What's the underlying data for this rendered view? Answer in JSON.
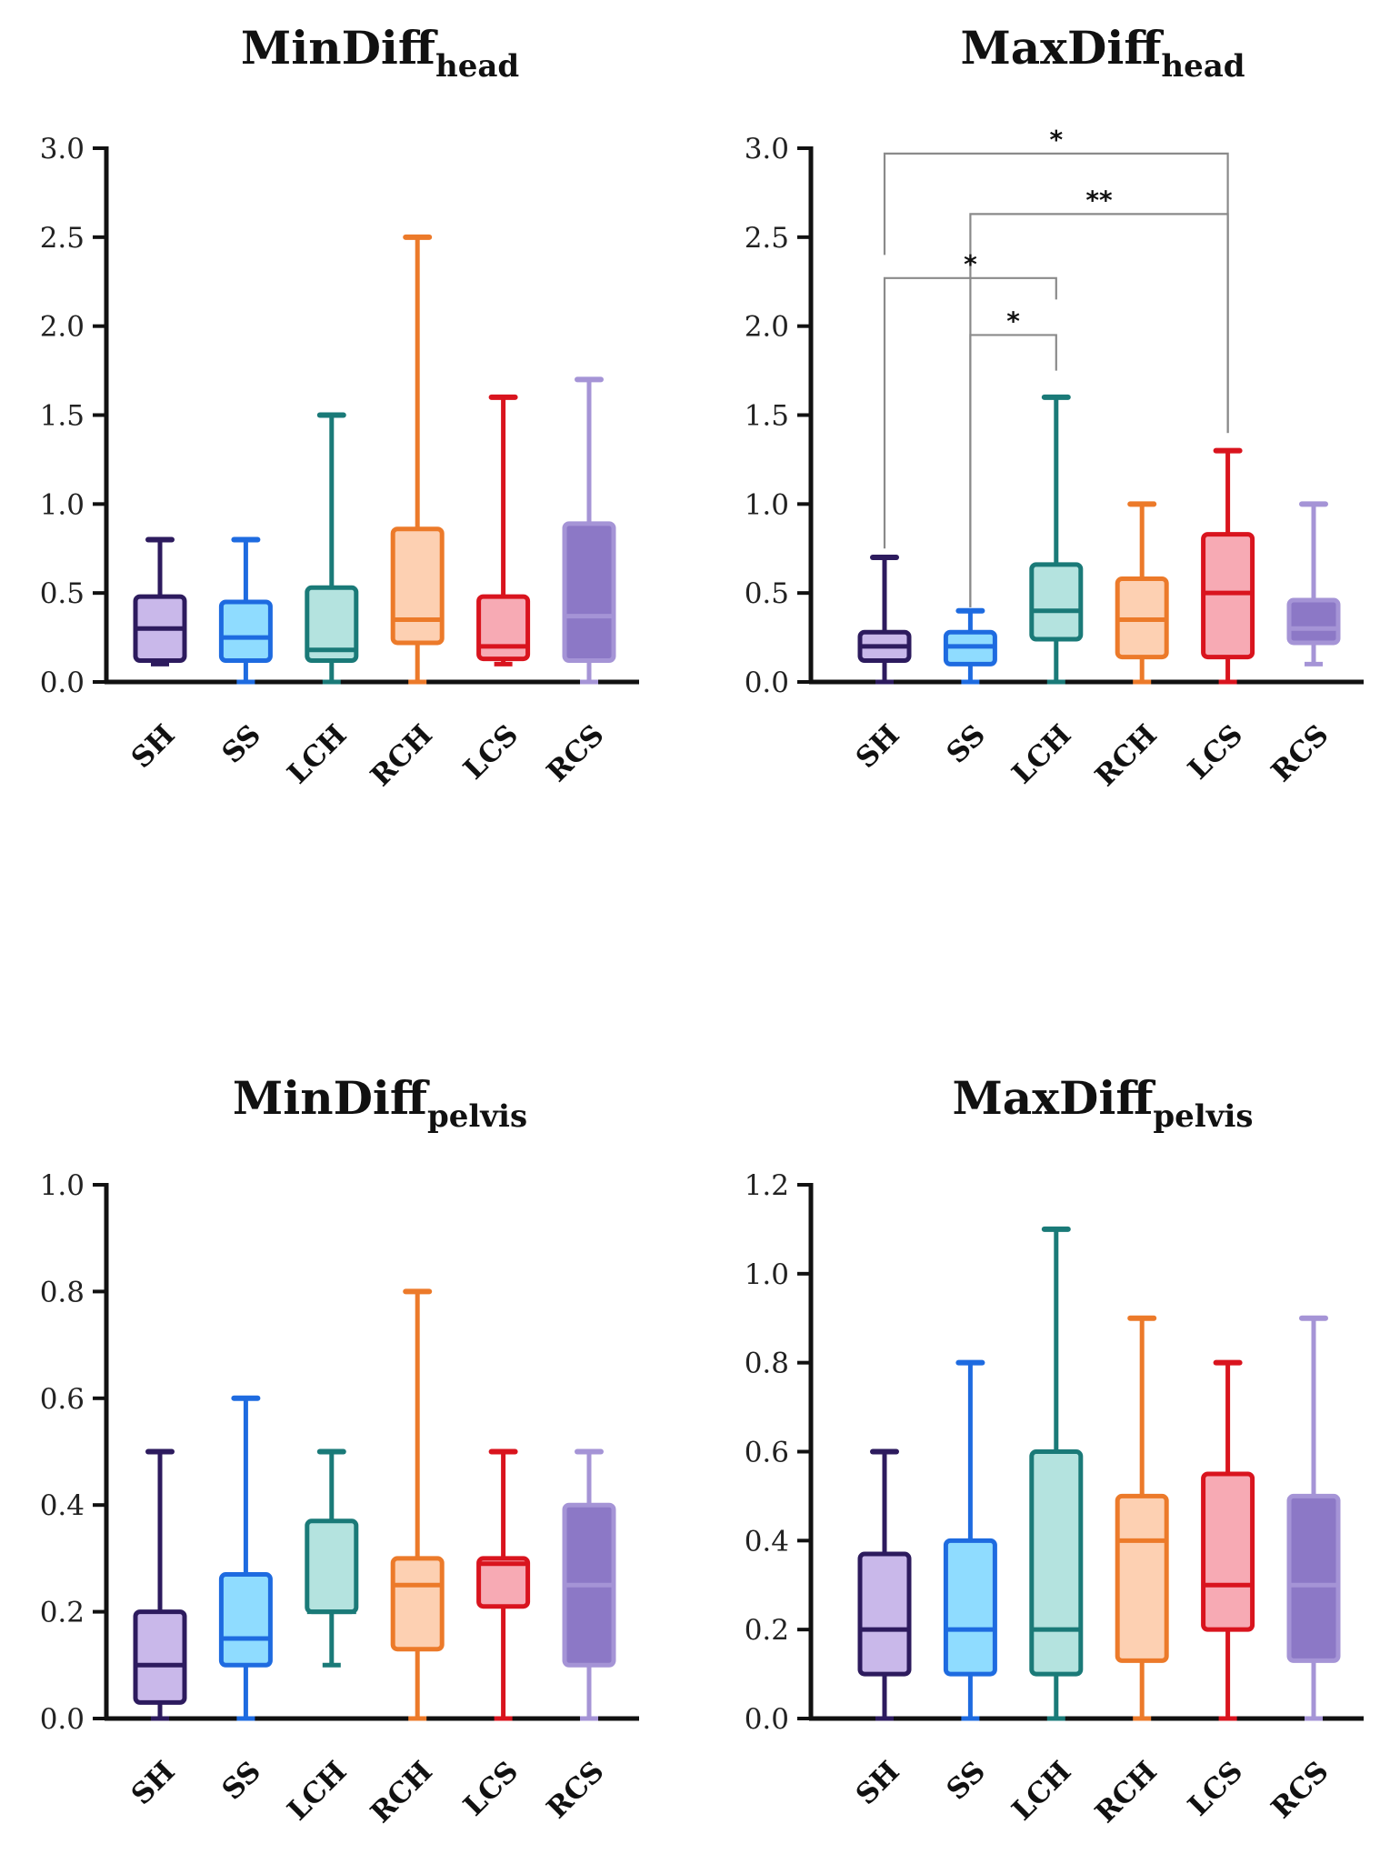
{
  "colors": {
    "SH": {
      "stroke": "#2d1b5e",
      "fill": "#c9b8ea"
    },
    "SS": {
      "stroke": "#1e6be0",
      "fill": "#8fdcff"
    },
    "LCH": {
      "stroke": "#1a7a78",
      "fill": "#b4e3df"
    },
    "RCH": {
      "stroke": "#ec7a2a",
      "fill": "#fdd0b2"
    },
    "LCS": {
      "stroke": "#d9141e",
      "fill": "#f7aab4"
    },
    "RCS": {
      "stroke": "#a594d6",
      "fill": "#8c78c6"
    }
  },
  "chart_data": [
    {
      "type": "box",
      "title": "MinDiff",
      "title_sub": "head",
      "categories": [
        "SH",
        "SS",
        "LCH",
        "RCH",
        "LCS",
        "RCS"
      ],
      "yticks": [
        "0.0",
        "0.5",
        "1.0",
        "1.5",
        "2.0",
        "2.5",
        "3.0"
      ],
      "ylim": [
        0,
        3.0
      ],
      "boxes": [
        {
          "min": 0.1,
          "q1": 0.12,
          "median": 0.3,
          "q3": 0.48,
          "max": 0.8
        },
        {
          "min": 0.0,
          "q1": 0.12,
          "median": 0.25,
          "q3": 0.45,
          "max": 0.8
        },
        {
          "min": 0.0,
          "q1": 0.12,
          "median": 0.18,
          "q3": 0.53,
          "max": 1.5
        },
        {
          "min": 0.0,
          "q1": 0.22,
          "median": 0.35,
          "q3": 0.86,
          "max": 2.5
        },
        {
          "min": 0.1,
          "q1": 0.13,
          "median": 0.2,
          "q3": 0.48,
          "max": 1.6
        },
        {
          "min": 0.0,
          "q1": 0.12,
          "median": 0.37,
          "q3": 0.89,
          "max": 1.7
        }
      ],
      "brackets": []
    },
    {
      "type": "box",
      "title": "MaxDiff",
      "title_sub": "head",
      "categories": [
        "SH",
        "SS",
        "LCH",
        "RCH",
        "LCS",
        "RCS"
      ],
      "yticks": [
        "0.0",
        "0.5",
        "1.0",
        "1.5",
        "2.0",
        "2.5",
        "3.0"
      ],
      "ylim": [
        0,
        3.0
      ],
      "boxes": [
        {
          "min": 0.0,
          "q1": 0.12,
          "median": 0.2,
          "q3": 0.28,
          "max": 0.7
        },
        {
          "min": 0.0,
          "q1": 0.1,
          "median": 0.2,
          "q3": 0.28,
          "max": 0.4
        },
        {
          "min": 0.0,
          "q1": 0.24,
          "median": 0.4,
          "q3": 0.66,
          "max": 1.6
        },
        {
          "min": 0.0,
          "q1": 0.14,
          "median": 0.35,
          "q3": 0.58,
          "max": 1.0
        },
        {
          "min": 0.0,
          "q1": 0.14,
          "median": 0.5,
          "q3": 0.83,
          "max": 1.3
        },
        {
          "min": 0.1,
          "q1": 0.22,
          "median": 0.3,
          "q3": 0.46,
          "max": 1.0
        }
      ],
      "brackets": [
        {
          "from": 0,
          "to": 4,
          "y": 2.97,
          "left_bottom": 2.4,
          "right_bottom": 1.4,
          "label": "*"
        },
        {
          "from": 1,
          "to": 4,
          "y": 2.63,
          "left_bottom": 0.42,
          "right_bottom": 1.4,
          "label": "**"
        },
        {
          "from": 0,
          "to": 2,
          "y": 2.27,
          "left_bottom": 0.75,
          "right_bottom": 2.15,
          "label": "*"
        },
        {
          "from": 1,
          "to": 2,
          "y": 1.95,
          "left_bottom": 0.42,
          "right_bottom": 1.75,
          "label": "*"
        }
      ]
    },
    {
      "type": "box",
      "title": "MinDiff",
      "title_sub": "pelvis",
      "categories": [
        "SH",
        "SS",
        "LCH",
        "RCH",
        "LCS",
        "RCS"
      ],
      "yticks": [
        "0.0",
        "0.2",
        "0.4",
        "0.6",
        "0.8",
        "1.0"
      ],
      "ylim": [
        0,
        1.0
      ],
      "boxes": [
        {
          "min": 0.0,
          "q1": 0.03,
          "median": 0.1,
          "q3": 0.2,
          "max": 0.5
        },
        {
          "min": 0.0,
          "q1": 0.1,
          "median": 0.15,
          "q3": 0.27,
          "max": 0.6
        },
        {
          "min": 0.1,
          "q1": 0.2,
          "median": 0.2,
          "q3": 0.37,
          "max": 0.5
        },
        {
          "min": 0.0,
          "q1": 0.13,
          "median": 0.25,
          "q3": 0.3,
          "max": 0.8
        },
        {
          "min": 0.0,
          "q1": 0.21,
          "median": 0.29,
          "q3": 0.3,
          "max": 0.5
        },
        {
          "min": 0.0,
          "q1": 0.1,
          "median": 0.25,
          "q3": 0.4,
          "max": 0.5
        }
      ],
      "brackets": []
    },
    {
      "type": "box",
      "title": "MaxDiff",
      "title_sub": "pelvis",
      "categories": [
        "SH",
        "SS",
        "LCH",
        "RCH",
        "LCS",
        "RCS"
      ],
      "yticks": [
        "0.0",
        "0.2",
        "0.4",
        "0.6",
        "0.8",
        "1.0",
        "1.2"
      ],
      "ylim": [
        0,
        1.2
      ],
      "boxes": [
        {
          "min": 0.0,
          "q1": 0.1,
          "median": 0.2,
          "q3": 0.37,
          "max": 0.6
        },
        {
          "min": 0.0,
          "q1": 0.1,
          "median": 0.2,
          "q3": 0.4,
          "max": 0.8
        },
        {
          "min": 0.0,
          "q1": 0.1,
          "median": 0.2,
          "q3": 0.6,
          "max": 1.1
        },
        {
          "min": 0.0,
          "q1": 0.13,
          "median": 0.4,
          "q3": 0.5,
          "max": 0.9
        },
        {
          "min": 0.0,
          "q1": 0.2,
          "median": 0.3,
          "q3": 0.55,
          "max": 0.8
        },
        {
          "min": 0.0,
          "q1": 0.13,
          "median": 0.3,
          "q3": 0.5,
          "max": 0.9
        }
      ],
      "brackets": []
    }
  ]
}
